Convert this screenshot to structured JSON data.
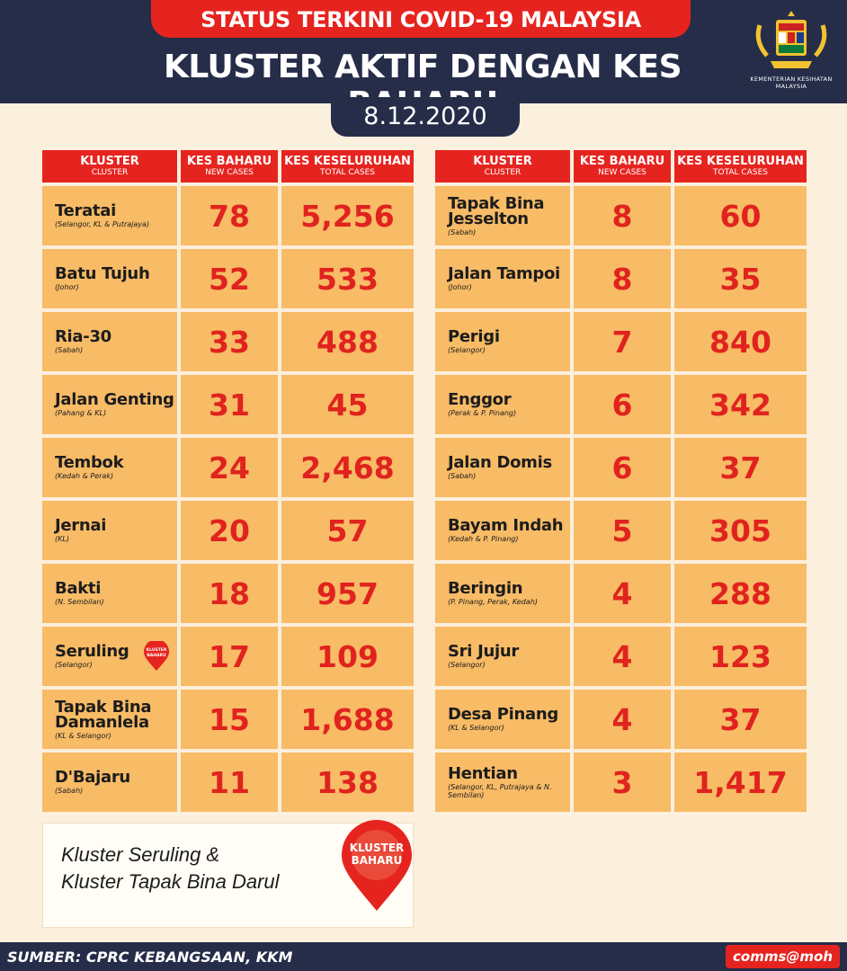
{
  "header": {
    "status_title": "STATUS TERKINI COVID-19 MALAYSIA",
    "main_title": "KLUSTER AKTIF DENGAN KES BAHARU",
    "date": "8.12.2020",
    "ministry": "KEMENTERIAN KESIHATAN MALAYSIA"
  },
  "table_headers": {
    "cluster": "KLUSTER",
    "cluster_sub": "CLUSTER",
    "new": "KES BAHARU",
    "new_sub": "NEW CASES",
    "total": "KES KESELURUHAN",
    "total_sub": "TOTAL CASES"
  },
  "left_rows": [
    {
      "name": "Teratai",
      "loc": "(Selangor, KL & Putrajaya)",
      "new": "78",
      "total": "5,256"
    },
    {
      "name": "Batu Tujuh",
      "loc": "(Johor)",
      "new": "52",
      "total": "533"
    },
    {
      "name": "Ria-30",
      "loc": "(Sabah)",
      "new": "33",
      "total": "488"
    },
    {
      "name": "Jalan Genting",
      "loc": "(Pahang & KL)",
      "new": "31",
      "total": "45"
    },
    {
      "name": "Tembok",
      "loc": "(Kedah & Perak)",
      "new": "24",
      "total": "2,468"
    },
    {
      "name": "Jernai",
      "loc": "(KL)",
      "new": "20",
      "total": "57"
    },
    {
      "name": "Bakti",
      "loc": "(N. Sembilan)",
      "new": "18",
      "total": "957"
    },
    {
      "name": "Seruling",
      "loc": "(Selangor)",
      "new": "17",
      "total": "109",
      "tag": "KLUSTER BAHARU"
    },
    {
      "name": "Tapak Bina Damanlela",
      "loc": "(KL & Selangor)",
      "new": "15",
      "total": "1,688"
    },
    {
      "name": "D'Bajaru",
      "loc": "(Sabah)",
      "new": "11",
      "total": "138"
    }
  ],
  "right_rows": [
    {
      "name": "Tapak Bina Jesselton",
      "loc": "(Sabah)",
      "new": "8",
      "total": "60"
    },
    {
      "name": "Jalan Tampoi",
      "loc": "(Johor)",
      "new": "8",
      "total": "35"
    },
    {
      "name": "Perigi",
      "loc": "(Selangor)",
      "new": "7",
      "total": "840"
    },
    {
      "name": "Enggor",
      "loc": "(Perak & P. Pinang)",
      "new": "6",
      "total": "342"
    },
    {
      "name": "Jalan Domis",
      "loc": "(Sabah)",
      "new": "6",
      "total": "37"
    },
    {
      "name": "Bayam Indah",
      "loc": "(Kedah & P. Pinang)",
      "new": "5",
      "total": "305"
    },
    {
      "name": "Beringin",
      "loc": "(P. Pinang, Perak, Kedah)",
      "new": "4",
      "total": "288"
    },
    {
      "name": "Sri Jujur",
      "loc": "(Selangor)",
      "new": "4",
      "total": "123"
    },
    {
      "name": "Desa Pinang",
      "loc": "(KL & Selangor)",
      "new": "4",
      "total": "37"
    },
    {
      "name": "Hentian",
      "loc": "(Selangor, KL, Putrajaya & N. Sembilan)",
      "new": "3",
      "total": "1,417"
    }
  ],
  "note": {
    "line1": "Kluster Seruling &",
    "line2": "Kluster Tapak Bina Darul",
    "badge": "KLUSTER BAHARU"
  },
  "footer": {
    "source": "SUMBER: CPRC KEBANGSAAN, KKM",
    "brand": "comms@moh"
  },
  "colors": {
    "navy": "#262d49",
    "red": "#e6241f",
    "cell": "#f8bb66",
    "background": "#fbefdd"
  }
}
